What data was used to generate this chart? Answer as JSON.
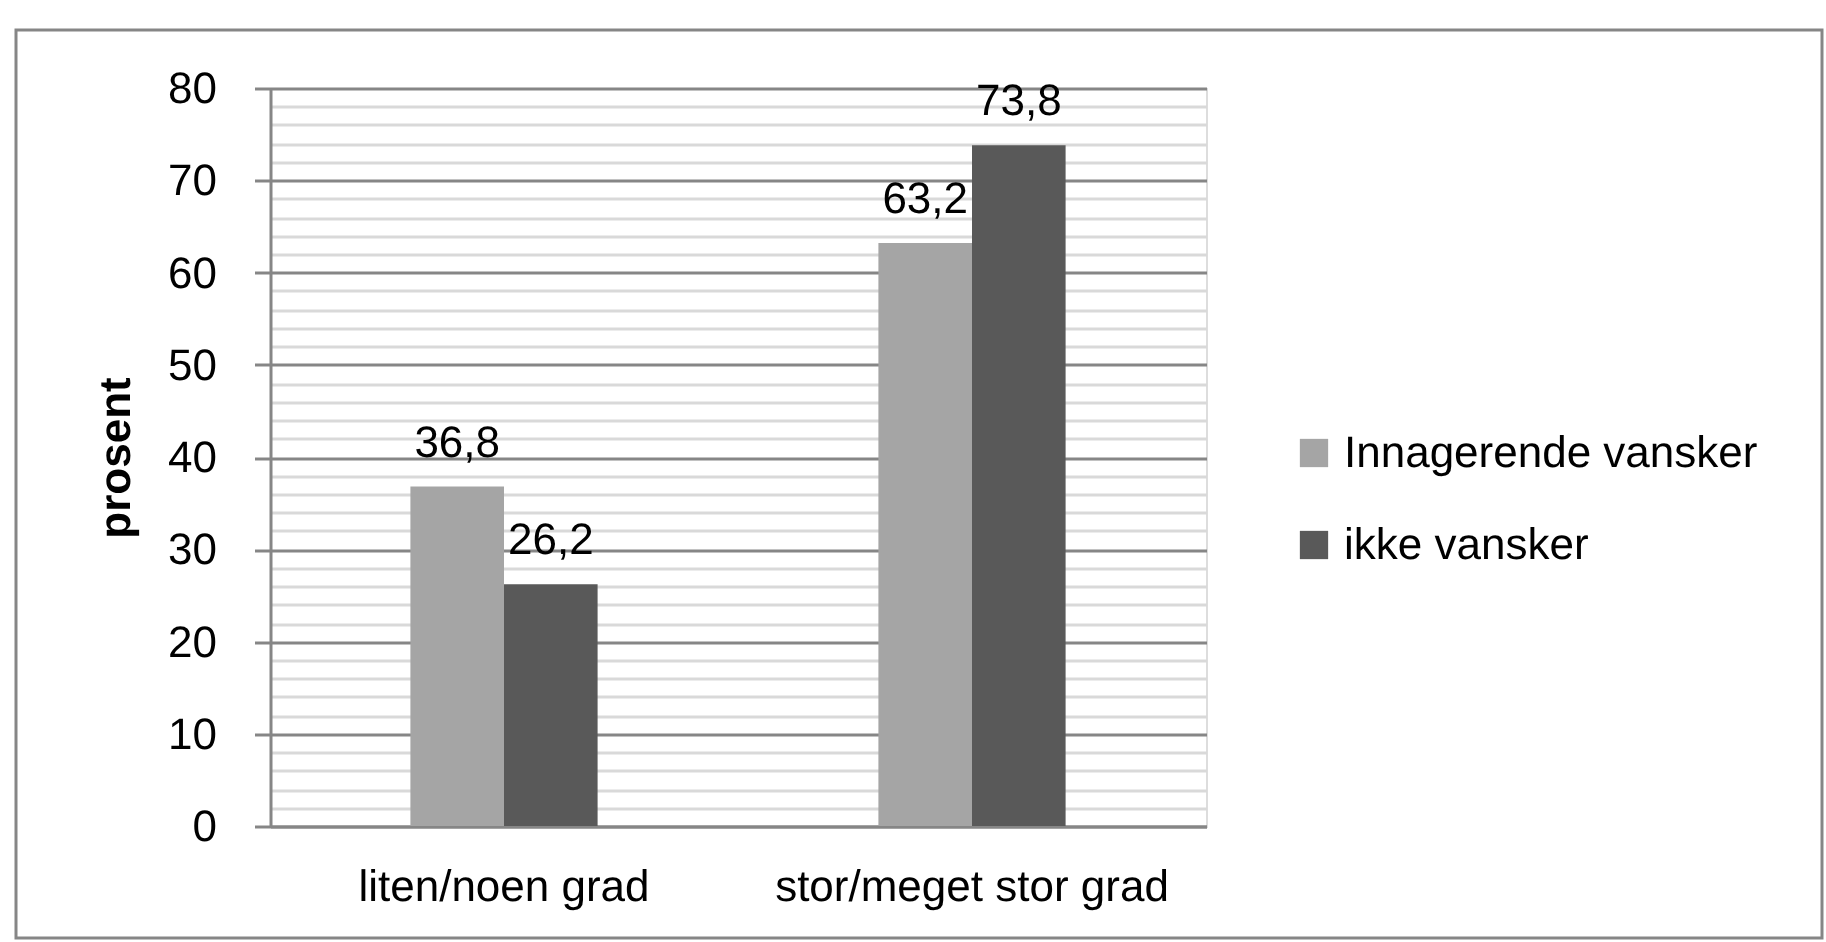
{
  "chart_data": {
    "type": "bar",
    "ylabel": "prosent",
    "categories": [
      "liten/noen grad",
      "stor/meget stor grad"
    ],
    "series": [
      {
        "name": "Innagerende vansker",
        "color": "#a5a5a5",
        "values": [
          36.8,
          63.2
        ],
        "value_labels": [
          "36,8",
          "63,2"
        ]
      },
      {
        "name": "ikke vansker",
        "color": "#595959",
        "values": [
          26.2,
          73.8
        ],
        "value_labels": [
          "26,2",
          "73,8"
        ]
      }
    ],
    "ylim": [
      0,
      80
    ],
    "yticks": [
      0,
      {
        "value": 2,
        "label": null
      },
      {
        "value": 4,
        "label": null
      },
      {
        "value": 6,
        "label": null
      },
      {
        "value": 8,
        "label": null
      },
      10,
      {
        "value": 12,
        "label": null
      },
      {
        "value": 14,
        "label": null
      },
      {
        "value": 16,
        "label": null
      },
      {
        "value": 18,
        "label": null
      },
      20,
      {
        "value": 22,
        "label": null
      },
      {
        "value": 24,
        "label": null
      },
      {
        "value": 26,
        "label": null
      },
      {
        "value": 28,
        "label": null
      },
      30,
      {
        "value": 32,
        "label": null
      },
      {
        "value": 34,
        "label": null
      },
      {
        "value": 36,
        "label": null
      },
      {
        "value": 38,
        "label": null
      },
      40,
      {
        "value": 42,
        "label": null
      },
      {
        "value": 44,
        "label": null
      },
      {
        "value": 46,
        "label": null
      },
      {
        "value": 48,
        "label": null
      },
      50,
      {
        "value": 52,
        "label": null
      },
      {
        "value": 54,
        "label": null
      },
      {
        "value": 56,
        "label": null
      },
      {
        "value": 58,
        "label": null
      },
      60,
      {
        "value": 62,
        "label": null
      },
      {
        "value": 64,
        "label": null
      },
      {
        "value": 66,
        "label": null
      },
      {
        "value": 68,
        "label": null
      },
      70,
      {
        "value": 72,
        "label": null
      },
      {
        "value": 74,
        "label": null
      },
      {
        "value": 76,
        "label": null
      },
      {
        "value": 78,
        "label": null
      },
      80
    ],
    "grid": "y",
    "legend": "right"
  }
}
